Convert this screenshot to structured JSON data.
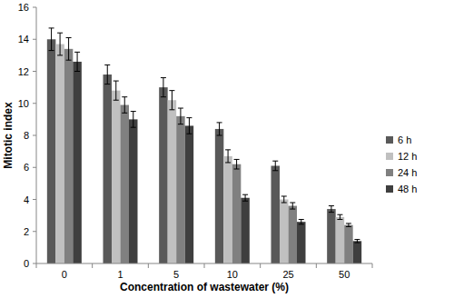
{
  "chart_data": {
    "type": "bar",
    "x_label": "Concentration of wastewater (%)",
    "y_label": "Mitotic index",
    "categories": [
      "0",
      "1",
      "5",
      "10",
      "25",
      "50"
    ],
    "series": [
      {
        "name": "6 h",
        "color": "#595959",
        "values": [
          14.0,
          11.8,
          11.0,
          8.4,
          6.1,
          3.4
        ],
        "errors": [
          0.7,
          0.6,
          0.6,
          0.4,
          0.3,
          0.2
        ]
      },
      {
        "name": "12 h",
        "color": "#c0c0c0",
        "values": [
          13.7,
          10.8,
          10.2,
          6.7,
          4.0,
          2.9
        ],
        "errors": [
          0.7,
          0.6,
          0.6,
          0.4,
          0.2,
          0.15
        ]
      },
      {
        "name": "24 h",
        "color": "#808080",
        "values": [
          13.4,
          9.9,
          9.2,
          6.2,
          3.6,
          2.4
        ],
        "errors": [
          0.7,
          0.5,
          0.5,
          0.3,
          0.2,
          0.1
        ]
      },
      {
        "name": "48 h",
        "color": "#3f3f3f",
        "values": [
          12.6,
          9.0,
          8.6,
          4.1,
          2.6,
          1.4
        ],
        "errors": [
          0.6,
          0.5,
          0.5,
          0.2,
          0.15,
          0.1
        ]
      }
    ],
    "ylim": [
      0,
      16
    ],
    "yticks": [
      0,
      2,
      4,
      6,
      8,
      10,
      12,
      14,
      16
    ],
    "grid": false,
    "legend": "right"
  }
}
